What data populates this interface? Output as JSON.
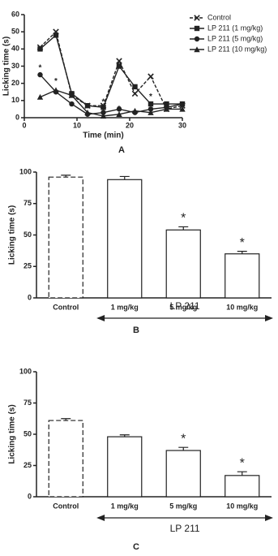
{
  "chart_data": [
    {
      "type": "line",
      "panel": "A",
      "y_label": "Licking time (s)",
      "x_label": "Time (min)",
      "x": [
        3,
        6,
        9,
        12,
        15,
        18,
        21,
        24,
        27,
        30
      ],
      "xlim": [
        0,
        30
      ],
      "xticks": [
        0,
        10,
        20,
        30
      ],
      "ylim": [
        0,
        60
      ],
      "yticks": [
        0,
        10,
        20,
        30,
        40,
        50,
        60
      ],
      "series": [
        {
          "name": "Control",
          "color": "#222222",
          "marker": "x",
          "dashed": true,
          "values": [
            41,
            50,
            13,
            7,
            7,
            33,
            14,
            24,
            5,
            7
          ]
        },
        {
          "name": "LP 211 (1 mg/kg)",
          "color": "#222222",
          "marker": "square",
          "dashed": false,
          "values": [
            40,
            48,
            14,
            7,
            6,
            30,
            18,
            8,
            8,
            8
          ]
        },
        {
          "name": "LP 211 (5 mg/kg)",
          "color": "#222222",
          "marker": "circle",
          "dashed": false,
          "values": [
            25,
            15,
            8,
            2,
            3,
            5,
            3,
            5,
            6,
            8
          ]
        },
        {
          "name": "LP 211 (10 mg/kg)",
          "color": "#222222",
          "marker": "triangle",
          "dashed": false,
          "values": [
            12,
            16,
            13,
            3,
            1,
            2,
            4,
            3,
            5,
            5
          ]
        }
      ],
      "annotations": [
        {
          "text": "*",
          "x": 3,
          "y": 29
        },
        {
          "text": "*",
          "x": 6,
          "y": 21
        },
        {
          "text": "*",
          "x": 12,
          "y": 6
        },
        {
          "text": "*",
          "x": 15,
          "y": 9
        },
        {
          "text": "*",
          "x": 18,
          "y": 5
        },
        {
          "text": "*",
          "x": 24,
          "y": 12
        }
      ]
    },
    {
      "type": "bar",
      "panel": "B",
      "y_label": "Licking time (s)",
      "categories": [
        "Control",
        "1 mg/kg",
        "5 mg/kg",
        "10 mg/kg"
      ],
      "values": [
        96,
        94,
        54,
        35
      ],
      "errors": [
        1.5,
        2.5,
        2.5,
        2
      ],
      "significance": [
        null,
        null,
        "*",
        "*"
      ],
      "bar_styles": [
        "dashed",
        "solid",
        "solid",
        "solid"
      ],
      "color": "#ffffff",
      "ylim": [
        0,
        100
      ],
      "yticks": [
        0,
        25,
        50,
        75,
        100
      ],
      "group": {
        "label": "LP 211",
        "span": [
          1,
          3
        ]
      }
    },
    {
      "type": "bar",
      "panel": "C",
      "y_label": "Licking time (s)",
      "categories": [
        "Control",
        "1 mg/kg",
        "5 mg/kg",
        "10 mg/kg"
      ],
      "values": [
        61,
        48,
        37,
        17
      ],
      "errors": [
        1.5,
        1.5,
        2.5,
        3
      ],
      "significance": [
        null,
        null,
        "*",
        "*"
      ],
      "bar_styles": [
        "dashed",
        "solid",
        "solid",
        "solid"
      ],
      "color": "#ffffff",
      "ylim": [
        0,
        100
      ],
      "yticks": [
        0,
        25,
        50,
        75,
        100
      ],
      "group": {
        "label": "LP 211",
        "span": [
          1,
          3
        ]
      }
    }
  ]
}
